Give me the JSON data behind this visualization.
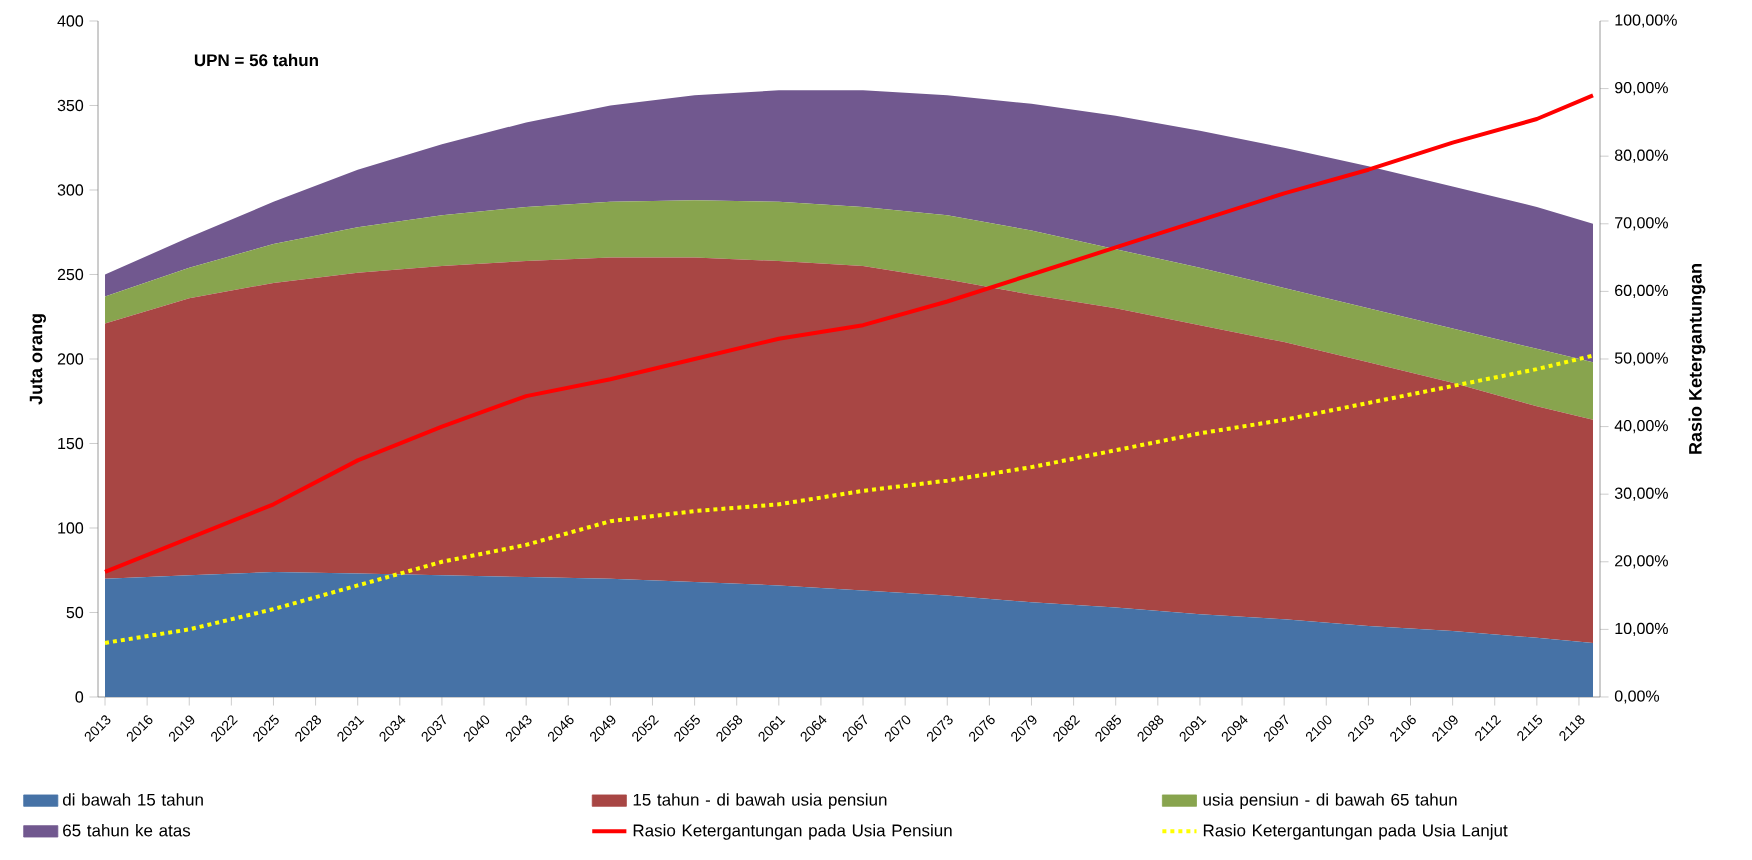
{
  "chart_data": {
    "type": "area",
    "stacked": true,
    "x": [
      2013,
      2019,
      2025,
      2031,
      2037,
      2043,
      2049,
      2055,
      2061,
      2067,
      2073,
      2079,
      2085,
      2091,
      2097,
      2103,
      2109,
      2115,
      2119
    ],
    "series": [
      {
        "name": "di bawah 15 tahun",
        "color": "#4672a6",
        "values": [
          70,
          72,
          74,
          73,
          72,
          71,
          70,
          68,
          66,
          63,
          60,
          56,
          53,
          49,
          46,
          42,
          39,
          35,
          32
        ]
      },
      {
        "name": "15 tahun - di bawah usia pensiun",
        "color": "#a84644",
        "values": [
          151,
          164,
          171,
          178,
          183,
          187,
          190,
          192,
          192,
          192,
          187,
          182,
          177,
          171,
          164,
          156,
          147,
          137,
          132
        ]
      },
      {
        "name": "usia pensiun - di bawah 65 tahun",
        "color": "#88a44e",
        "values": [
          16,
          18,
          23,
          27,
          30,
          32,
          33,
          34,
          35,
          35,
          38,
          38,
          35,
          34,
          32,
          32,
          32,
          34,
          34
        ]
      },
      {
        "name": "65 tahun ke atas",
        "color": "#71588f",
        "values": [
          13,
          18,
          25,
          34,
          42,
          50,
          57,
          62,
          66,
          69,
          71,
          75,
          79,
          81,
          83,
          84,
          84,
          84,
          82
        ]
      },
      {
        "name": "Rasio Ketergantungan pada Usia Pensiun",
        "type": "line",
        "axis": "y2",
        "color": "#ff0000",
        "values": [
          18.5,
          23.5,
          28.5,
          35,
          40,
          44.5,
          47,
          50,
          53,
          55,
          58.5,
          62.5,
          66.5,
          70.5,
          74.5,
          78,
          82,
          85.5,
          89
        ]
      },
      {
        "name": "Rasio Ketergantungan pada Usia Lanjut",
        "type": "line",
        "axis": "y2",
        "line_style": "dotted",
        "color": "#ffff00",
        "values": [
          8,
          10,
          13,
          16.5,
          20,
          22.5,
          26,
          27.5,
          28.5,
          30.5,
          32,
          34,
          36.5,
          39,
          41,
          43.5,
          46,
          48.5,
          50.5
        ]
      }
    ],
    "xlim": [
      2012.5,
      2119.5
    ],
    "xticks": [
      2013,
      2016,
      2019,
      2022,
      2025,
      2028,
      2031,
      2034,
      2037,
      2040,
      2043,
      2046,
      2049,
      2052,
      2055,
      2058,
      2061,
      2064,
      2067,
      2070,
      2073,
      2076,
      2079,
      2082,
      2085,
      2088,
      2091,
      2094,
      2097,
      2100,
      2103,
      2106,
      2109,
      2112,
      2115,
      2118
    ],
    "ylim": [
      0,
      400
    ],
    "yticks": [
      0,
      50,
      100,
      150,
      200,
      250,
      300,
      350,
      400
    ],
    "ylabel": "Juta orang",
    "y2label": "Rasio Ketergantungan",
    "y2lim": [
      0,
      100
    ],
    "y2ticks": [
      {
        "value": 0,
        "label": "0,00%"
      },
      {
        "value": 10,
        "label": "10,00%"
      },
      {
        "value": 20,
        "label": "20,00%"
      },
      {
        "value": 30,
        "label": "30,00%"
      },
      {
        "value": 40,
        "label": "40,00%"
      },
      {
        "value": 50,
        "label": "50,00%"
      },
      {
        "value": 60,
        "label": "60,00%"
      },
      {
        "value": 70,
        "label": "70,00%"
      },
      {
        "value": 80,
        "label": "80,00%"
      },
      {
        "value": 90,
        "label": "90,00%"
      },
      {
        "value": 100,
        "label": "100,00%"
      }
    ],
    "annotations": [
      "UPN = 56 tahun"
    ],
    "legend": "bottom"
  }
}
